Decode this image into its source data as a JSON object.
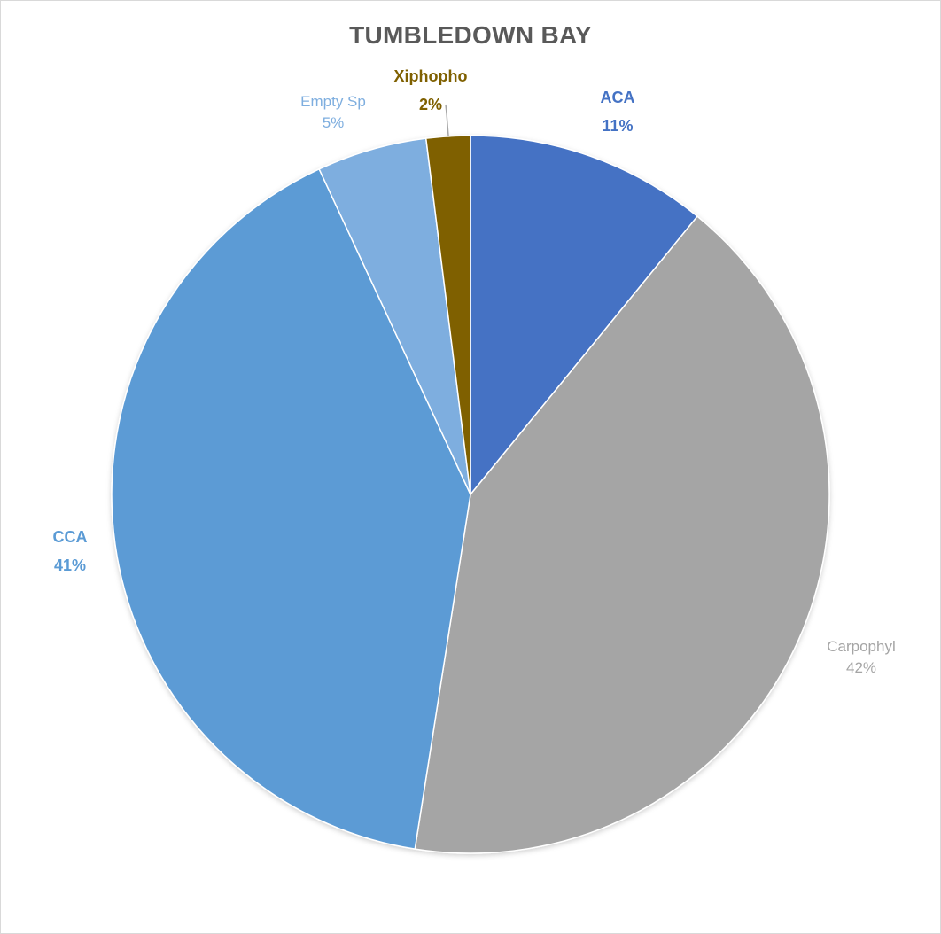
{
  "chart_data": {
    "type": "pie",
    "title": "TUMBLEDOWN BAY",
    "slices": [
      {
        "label": "ACA",
        "value": 11,
        "pct_label": "11%",
        "color": "#4472c4",
        "label_color": "#4472c4",
        "bold": true
      },
      {
        "label": "Carpophyl",
        "value": 42,
        "pct_label": "42%",
        "color": "#a5a5a5",
        "label_color": "#a5a5a5",
        "bold": false
      },
      {
        "label": "CCA",
        "value": 41,
        "pct_label": "41%",
        "color": "#5b9bd5",
        "label_color": "#5b9bd5",
        "bold": true
      },
      {
        "label": "Empty Sp",
        "value": 5,
        "pct_label": "5%",
        "color": "#7eaedf",
        "label_color": "#7eaedf",
        "bold": false
      },
      {
        "label": "Xiphopho",
        "value": 2,
        "pct_label": "2%",
        "color": "#7f6000",
        "label_color": "#7f6000",
        "bold": true
      }
    ],
    "legend": "none",
    "data_labels": "category name and percentage"
  }
}
